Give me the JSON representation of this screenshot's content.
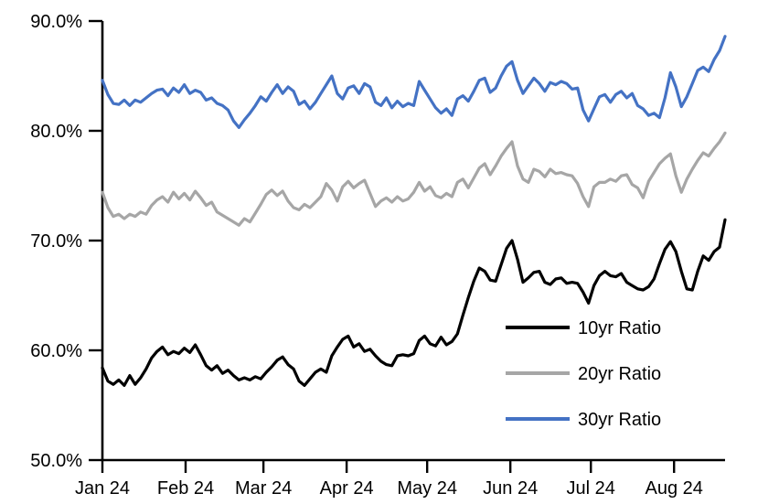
{
  "chart_data": {
    "type": "line",
    "title": "",
    "xlabel": "",
    "ylabel": "",
    "grid": false,
    "legend_position": "inside-lower-right",
    "ylim": [
      50,
      90
    ],
    "y_tick_values": [
      90,
      80,
      70,
      60,
      50
    ],
    "y_tick_labels": [
      "90.0%",
      "80.0%",
      "70.0%",
      "60.0%",
      "50.0%"
    ],
    "x_tick_labels": [
      "Jan 24",
      "Feb 24",
      "Mar 24",
      "Apr 24",
      "May 24",
      "Jun 24",
      "Jul 24",
      "Aug 24"
    ],
    "x_tick_day_offsets": [
      0,
      31,
      60,
      91,
      121,
      152,
      182,
      213
    ],
    "x_total_days": 232,
    "axis_color": "#000000",
    "series": [
      {
        "name": "10yr Ratio",
        "color": "#000000",
        "values": [
          58.4,
          57.2,
          56.9,
          57.3,
          56.8,
          57.7,
          56.9,
          57.5,
          58.3,
          59.3,
          59.9,
          60.3,
          59.6,
          59.9,
          59.7,
          60.2,
          59.8,
          60.5,
          59.6,
          58.6,
          58.2,
          58.6,
          57.9,
          58.2,
          57.7,
          57.3,
          57.5,
          57.3,
          57.6,
          57.4,
          58.0,
          58.5,
          59.1,
          59.4,
          58.7,
          58.3,
          57.2,
          56.8,
          57.4,
          58.0,
          58.3,
          58.0,
          59.5,
          60.3,
          61.0,
          61.3,
          60.3,
          60.6,
          59.9,
          60.1,
          59.5,
          59.0,
          58.7,
          58.6,
          59.5,
          59.6,
          59.5,
          59.7,
          60.9,
          61.3,
          60.6,
          60.4,
          61.2,
          60.5,
          60.8,
          61.5,
          63.2,
          64.8,
          66.3,
          67.5,
          67.2,
          66.4,
          66.3,
          67.8,
          69.3,
          70.0,
          68.3,
          66.2,
          66.6,
          67.1,
          67.2,
          66.2,
          66.0,
          66.5,
          66.6,
          66.1,
          66.2,
          66.1,
          65.3,
          64.3,
          65.9,
          66.8,
          67.2,
          66.8,
          66.7,
          67.0,
          66.2,
          65.9,
          65.6,
          65.5,
          65.8,
          66.5,
          67.9,
          69.2,
          69.9,
          69.0,
          67.2,
          65.6,
          65.5,
          67.2,
          68.6,
          68.2,
          69.0,
          69.4,
          71.9
        ]
      },
      {
        "name": "20yr Ratio",
        "color": "#A6A6A6",
        "values": [
          74.4,
          73.0,
          72.2,
          72.4,
          72.0,
          72.4,
          72.2,
          72.6,
          72.4,
          73.2,
          73.7,
          74.0,
          73.5,
          74.4,
          73.8,
          74.3,
          73.7,
          74.5,
          73.9,
          73.2,
          73.5,
          72.6,
          72.3,
          72.0,
          71.7,
          71.4,
          72.0,
          71.7,
          72.5,
          73.3,
          74.2,
          74.6,
          74.1,
          74.5,
          73.6,
          73.0,
          72.8,
          73.3,
          73.0,
          73.5,
          74.0,
          75.2,
          74.6,
          73.6,
          74.9,
          75.4,
          74.8,
          75.2,
          75.5,
          74.3,
          73.1,
          73.6,
          73.9,
          73.5,
          74.0,
          73.6,
          73.8,
          74.4,
          75.3,
          74.5,
          74.9,
          74.1,
          73.9,
          74.3,
          74.0,
          75.3,
          75.6,
          74.8,
          75.7,
          76.6,
          77.0,
          76.0,
          76.8,
          77.7,
          78.4,
          79.0,
          76.8,
          75.6,
          75.3,
          76.5,
          76.3,
          75.8,
          76.5,
          76.1,
          76.2,
          76.0,
          75.9,
          75.2,
          74.0,
          73.1,
          74.9,
          75.3,
          75.3,
          75.6,
          75.4,
          75.9,
          76.0,
          75.1,
          74.8,
          73.9,
          75.4,
          76.2,
          77.0,
          77.5,
          77.9,
          75.9,
          74.4,
          75.6,
          76.5,
          77.3,
          78.0,
          77.7,
          78.4,
          79.0,
          79.8
        ]
      },
      {
        "name": "30yr Ratio",
        "color": "#4472C4",
        "values": [
          84.6,
          83.3,
          82.5,
          82.4,
          82.8,
          82.3,
          82.8,
          82.6,
          83.0,
          83.4,
          83.7,
          83.8,
          83.2,
          83.9,
          83.5,
          84.2,
          83.4,
          83.7,
          83.5,
          82.8,
          83.0,
          82.5,
          82.3,
          81.9,
          80.9,
          80.3,
          81.0,
          81.6,
          82.3,
          83.1,
          82.7,
          83.5,
          84.2,
          83.4,
          84.0,
          83.6,
          82.4,
          82.7,
          82.0,
          82.6,
          83.4,
          84.2,
          85.0,
          83.4,
          82.9,
          83.9,
          84.1,
          83.4,
          84.3,
          84.0,
          82.6,
          82.3,
          83.0,
          82.1,
          82.7,
          82.2,
          82.5,
          82.3,
          84.5,
          83.7,
          82.9,
          82.1,
          81.6,
          82.0,
          81.4,
          82.9,
          83.2,
          82.7,
          83.6,
          84.6,
          84.8,
          83.5,
          83.9,
          85.0,
          85.9,
          86.3,
          84.6,
          83.4,
          84.1,
          84.8,
          84.3,
          83.6,
          84.4,
          84.2,
          84.5,
          84.3,
          83.8,
          83.9,
          81.9,
          80.9,
          82.0,
          83.1,
          83.3,
          82.6,
          83.3,
          83.6,
          83.0,
          83.4,
          82.3,
          82.0,
          81.4,
          81.6,
          81.2,
          83.0,
          85.3,
          84.0,
          82.2,
          83.1,
          84.3,
          85.5,
          85.8,
          85.4,
          86.5,
          87.3,
          88.6
        ]
      }
    ]
  }
}
